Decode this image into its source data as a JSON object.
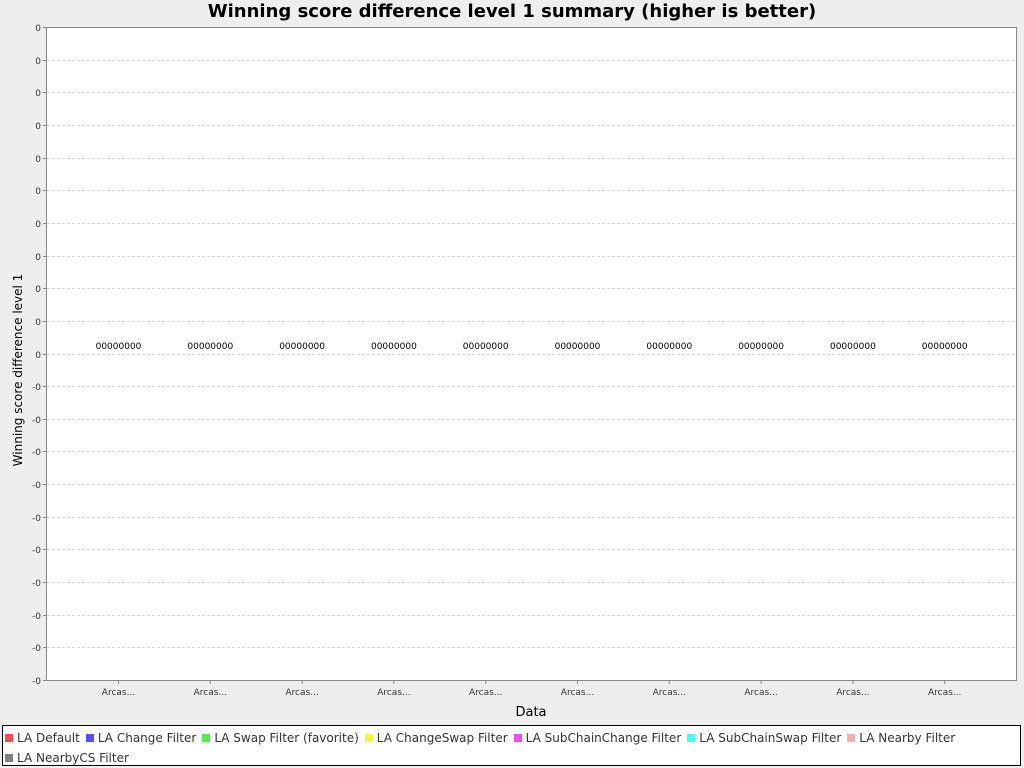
{
  "chart_data": {
    "type": "bar",
    "title": "Winning score difference level 1 summary (higher is better)",
    "xlabel": "Data",
    "ylabel": "Winning score difference level 1",
    "ylim": [
      -10,
      10
    ],
    "grid": true,
    "legend_position": "bottom",
    "y_ticks": [
      "0",
      "0",
      "0",
      "0",
      "0",
      "0",
      "0",
      "0",
      "0",
      "0",
      "0",
      "-0",
      "-0",
      "-0",
      "-0",
      "-0",
      "-0",
      "-0",
      "-0",
      "-0",
      "-0"
    ],
    "categories": [
      "Arcas...",
      "Arcas...",
      "Arcas...",
      "Arcas...",
      "Arcas...",
      "Arcas...",
      "Arcas...",
      "Arcas...",
      "Arcas...",
      "Arcas..."
    ],
    "value_labels": [
      "00000000",
      "00000000",
      "00000000",
      "00000000",
      "00000000",
      "00000000",
      "00000000",
      "00000000",
      "00000000",
      "00000000"
    ],
    "series": [
      {
        "name": "LA Default",
        "color": "#f05050",
        "values": [
          0,
          0,
          0,
          0,
          0,
          0,
          0,
          0,
          0,
          0
        ]
      },
      {
        "name": "LA Change Filter",
        "color": "#5050f5",
        "values": [
          0,
          0,
          0,
          0,
          0,
          0,
          0,
          0,
          0,
          0
        ]
      },
      {
        "name": "LA Swap Filter (favorite)",
        "color": "#50f050",
        "values": [
          0,
          0,
          0,
          0,
          0,
          0,
          0,
          0,
          0,
          0
        ]
      },
      {
        "name": "LA ChangeSwap Filter",
        "color": "#f5f550",
        "values": [
          0,
          0,
          0,
          0,
          0,
          0,
          0,
          0,
          0,
          0
        ]
      },
      {
        "name": "LA SubChainChange Filter",
        "color": "#f050f0",
        "values": [
          0,
          0,
          0,
          0,
          0,
          0,
          0,
          0,
          0,
          0
        ]
      },
      {
        "name": "LA SubChainSwap Filter",
        "color": "#50f5f5",
        "values": [
          0,
          0,
          0,
          0,
          0,
          0,
          0,
          0,
          0,
          0
        ]
      },
      {
        "name": "LA Nearby Filter",
        "color": "#f5b0b0",
        "values": [
          0,
          0,
          0,
          0,
          0,
          0,
          0,
          0,
          0,
          0
        ]
      },
      {
        "name": "LA NearbyCS Filter",
        "color": "#808080",
        "values": [
          0,
          0,
          0,
          0,
          0,
          0,
          0,
          0,
          0,
          0
        ]
      }
    ]
  }
}
